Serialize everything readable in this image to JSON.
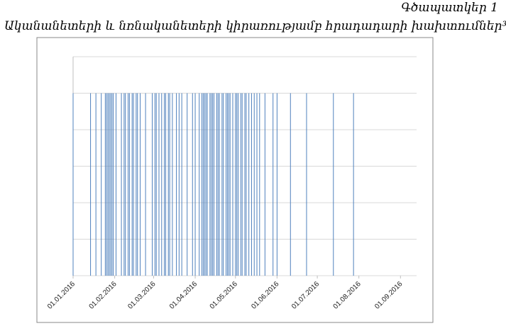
{
  "chart_data": {
    "type": "event_lines",
    "title": "Գծապատկեր 1",
    "subtitle": "Ականանետերի և նռնականետերի կիրառությամբ հրադադարի խախտումներ³",
    "x": [
      "2016-01-01",
      "2016-01-14",
      "2016-01-18",
      "2016-01-22",
      "2016-01-25",
      "2016-01-26",
      "2016-01-27",
      "2016-01-28",
      "2016-01-29",
      "2016-01-30",
      "2016-01-31",
      "2016-02-02",
      "2016-02-06",
      "2016-02-08",
      "2016-02-09",
      "2016-02-11",
      "2016-02-12",
      "2016-02-14",
      "2016-02-15",
      "2016-02-17",
      "2016-02-18",
      "2016-02-20",
      "2016-02-24",
      "2016-02-29",
      "2016-03-02",
      "2016-03-03",
      "2016-03-05",
      "2016-03-07",
      "2016-03-09",
      "2016-03-10",
      "2016-03-12",
      "2016-03-13",
      "2016-03-15",
      "2016-03-18",
      "2016-03-20",
      "2016-03-22",
      "2016-03-26",
      "2016-03-30",
      "2016-04-01",
      "2016-04-04",
      "2016-04-06",
      "2016-04-07",
      "2016-04-08",
      "2016-04-09",
      "2016-04-10",
      "2016-04-12",
      "2016-04-13",
      "2016-04-14",
      "2016-04-15",
      "2016-04-17",
      "2016-04-18",
      "2016-04-19",
      "2016-04-21",
      "2016-04-22",
      "2016-04-24",
      "2016-04-25",
      "2016-04-26",
      "2016-04-27",
      "2016-04-29",
      "2016-05-01",
      "2016-05-02",
      "2016-05-03",
      "2016-05-05",
      "2016-05-06",
      "2016-05-08",
      "2016-05-09",
      "2016-05-11",
      "2016-05-13",
      "2016-05-15",
      "2016-05-17",
      "2016-05-19",
      "2016-05-23",
      "2016-05-29",
      "2016-06-01",
      "2016-06-11",
      "2016-06-23",
      "2016-07-13",
      "2016-07-28"
    ],
    "values": [
      5,
      5,
      5,
      5,
      5,
      5,
      5,
      5,
      5,
      5,
      5,
      5,
      5,
      5,
      5,
      5,
      5,
      5,
      5,
      5,
      5,
      5,
      5,
      5,
      5,
      5,
      5,
      5,
      5,
      5,
      5,
      5,
      5,
      5,
      5,
      5,
      5,
      5,
      5,
      5,
      5,
      5,
      5,
      5,
      5,
      5,
      5,
      5,
      5,
      5,
      5,
      5,
      5,
      5,
      5,
      5,
      5,
      5,
      5,
      5,
      5,
      5,
      5,
      5,
      5,
      5,
      5,
      5,
      5,
      5,
      5,
      5,
      5,
      5,
      5,
      5,
      5,
      5
    ],
    "color": "#4f81bd",
    "xlim": [
      "2016-01-01",
      "2016-09-13"
    ],
    "xticks": [
      {
        "value": "2016-01-01",
        "label": "01.01.2016"
      },
      {
        "value": "2016-02-01",
        "label": "01.02.2016"
      },
      {
        "value": "2016-03-01",
        "label": "01.03.2016"
      },
      {
        "value": "2016-04-01",
        "label": "01.04.2016"
      },
      {
        "value": "2016-05-01",
        "label": "01.05.2016"
      },
      {
        "value": "2016-06-01",
        "label": "01.06.2016"
      },
      {
        "value": "2016-07-01",
        "label": "01.07.2016"
      },
      {
        "value": "2016-08-01",
        "label": "01.08.2016"
      },
      {
        "value": "2016-09-01",
        "label": "01.09.2016"
      }
    ],
    "ylim": [
      0,
      6
    ],
    "yticks": [
      0,
      1,
      2,
      3,
      4,
      5,
      6
    ],
    "y_tick_labels": false,
    "grid": true
  }
}
